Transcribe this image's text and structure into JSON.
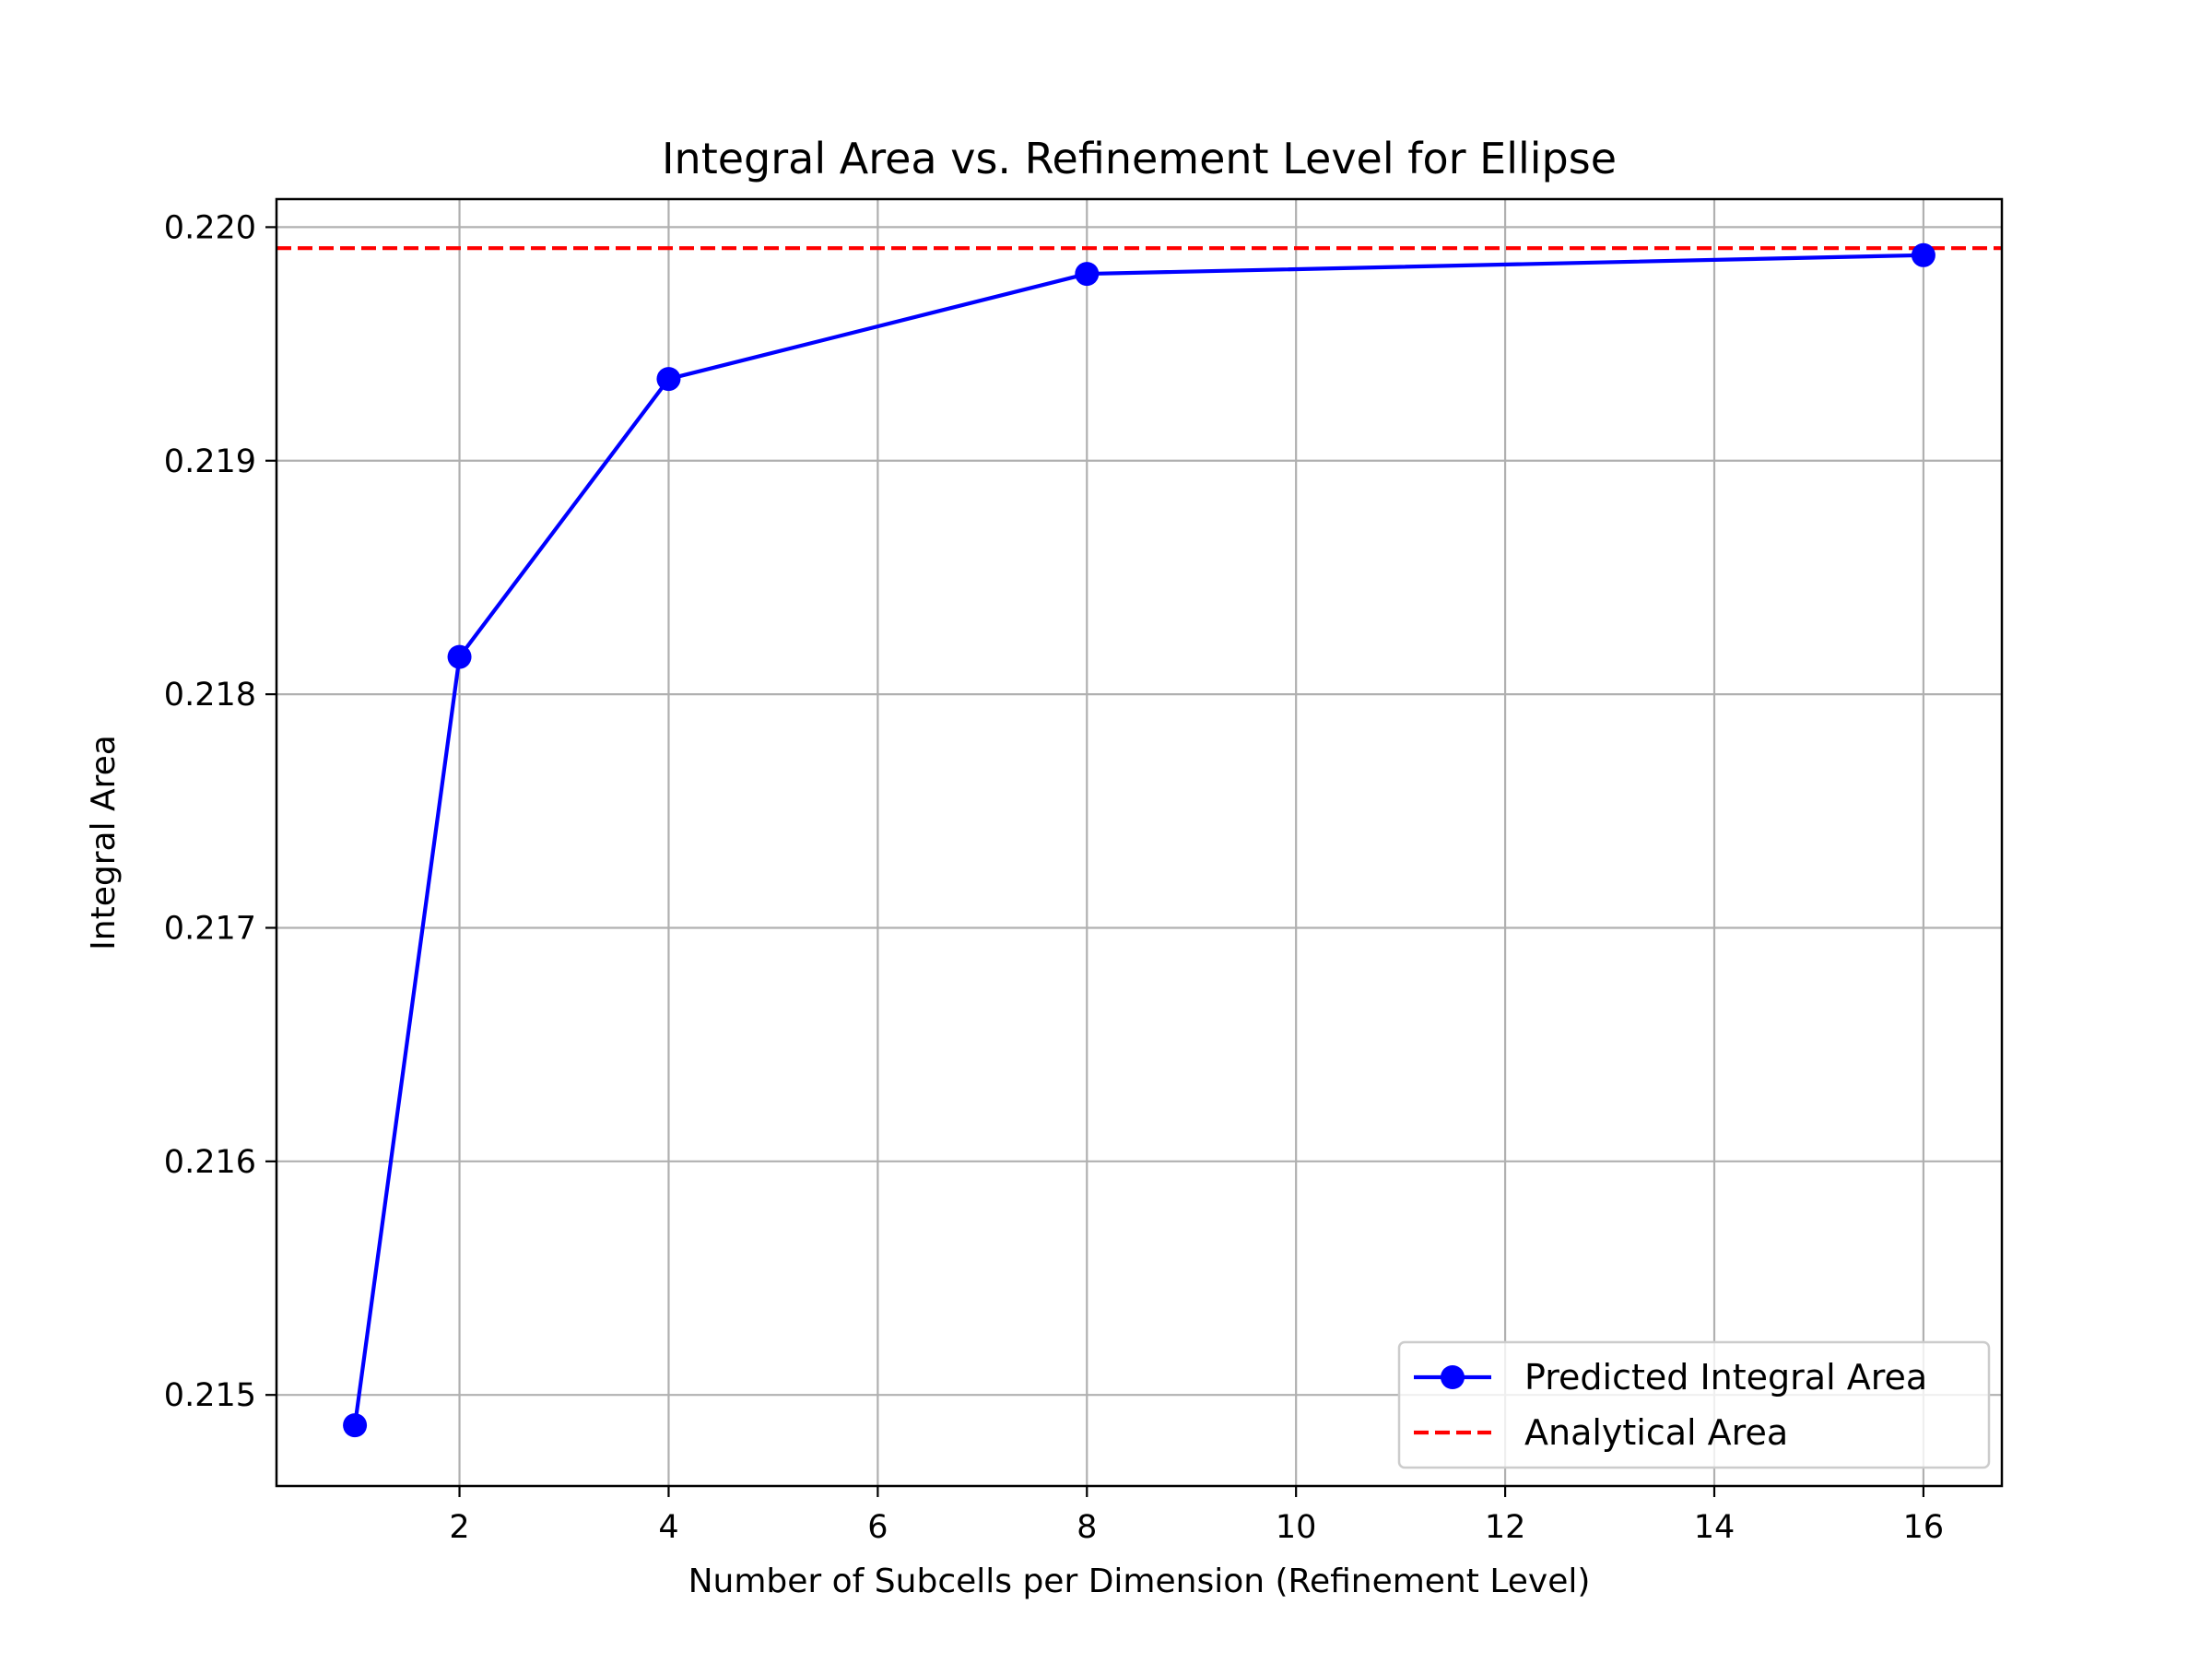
{
  "chart_data": {
    "type": "line",
    "title": "Integral Area vs. Refinement Level for Ellipse",
    "xlabel": "Number of Subcells per Dimension (Refinement Level)",
    "ylabel": "Integral Area",
    "xlim": [
      0.25,
      16.75
    ],
    "ylim": [
      0.21461,
      0.22012
    ],
    "xticks": [
      2,
      4,
      6,
      8,
      10,
      12,
      14,
      16
    ],
    "xtick_labels": [
      "2",
      "4",
      "6",
      "8",
      "10",
      "12",
      "14",
      "16"
    ],
    "yticks": [
      0.215,
      0.216,
      0.217,
      0.218,
      0.219,
      0.22
    ],
    "ytick_labels": [
      "0.215",
      "0.216",
      "0.217",
      "0.218",
      "0.219",
      "0.220"
    ],
    "grid": true,
    "legend_position": "lower-right",
    "series": [
      {
        "name": "Predicted Integral Area",
        "color": "#0000ff",
        "line_style": "solid",
        "marker": "circle",
        "x": [
          1,
          2,
          4,
          8,
          16
        ],
        "y": [
          0.21487,
          0.21816,
          0.21935,
          0.2198,
          0.21988
        ]
      },
      {
        "name": "Analytical Area",
        "color": "#ff0000",
        "line_style": "dashed",
        "marker": "none",
        "y_constant": 0.21991
      }
    ]
  }
}
